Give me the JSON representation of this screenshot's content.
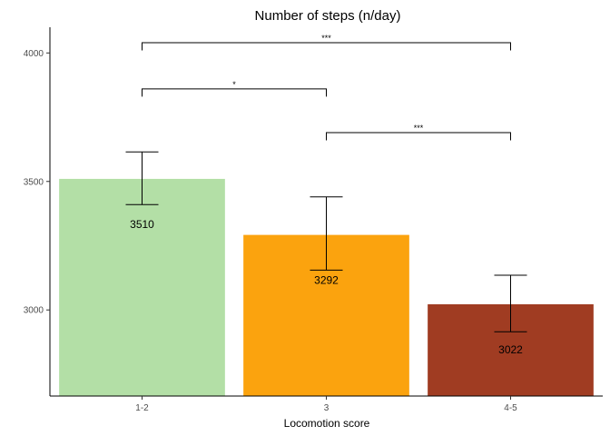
{
  "chart_data": {
    "type": "bar",
    "title": "Number of steps (n/day)",
    "xlabel": "Locomotion score",
    "ylabel": "",
    "categories": [
      "1-2",
      "3",
      "4-5"
    ],
    "values": [
      3510,
      3292,
      3022
    ],
    "value_labels": [
      "3510",
      "3292",
      "3022"
    ],
    "error_low": [
      3410,
      3155,
      2915
    ],
    "error_high": [
      3615,
      3440,
      3135
    ],
    "colors": [
      "#b3dfa6",
      "#fba30e",
      "#a03c22"
    ],
    "ylim": [
      2665,
      4100
    ],
    "yticks": [
      3000,
      3500,
      4000
    ],
    "ytick_labels": [
      "3000",
      "3500",
      "4000"
    ],
    "grid": false,
    "legend": "none",
    "significance": [
      {
        "from": 0,
        "to": 2,
        "label": "***",
        "y": 4040,
        "drop": 30
      },
      {
        "from": 0,
        "to": 1,
        "label": "*",
        "y": 3860,
        "drop": 30
      },
      {
        "from": 1,
        "to": 2,
        "label": "***",
        "y": 3690,
        "drop": 30
      }
    ]
  }
}
